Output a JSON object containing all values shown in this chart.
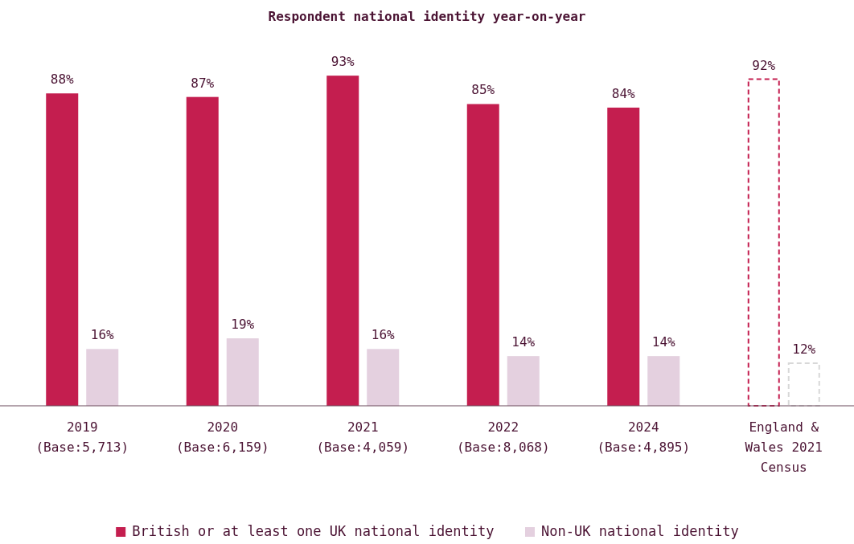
{
  "chart_data": {
    "type": "bar",
    "title": "Respondent national identity year-on-year",
    "categories": [
      "2019\n(Base:5,713)",
      "2020\n(Base:6,159)",
      "2021\n(Base:4,059)",
      "2022\n(Base:8,068)",
      "2024\n(Base:4,895)",
      "England &\nWales 2021\nCensus"
    ],
    "series": [
      {
        "name": "British or at least one UK national identity",
        "color": "#c41e4f",
        "values": [
          88,
          87,
          93,
          85,
          84,
          null
        ],
        "value_labels": [
          "88%",
          "87%",
          "93%",
          "85%",
          "84%",
          null
        ]
      },
      {
        "name": "Non-UK national identity",
        "color": "#e4d0df",
        "values": [
          16,
          19,
          16,
          14,
          14,
          null
        ],
        "value_labels": [
          "16%",
          "19%",
          "16%",
          "14%",
          "14%",
          null
        ]
      },
      {
        "color": "#c41e4f",
        "line_style": "dashed",
        "values": [
          null,
          null,
          null,
          null,
          null,
          92
        ],
        "value_labels": [
          null,
          null,
          null,
          null,
          null,
          "92%"
        ]
      },
      {
        "color": "#d8d8d8",
        "line_style": "dashed",
        "values": [
          null,
          null,
          null,
          null,
          null,
          12
        ],
        "value_labels": [
          null,
          null,
          null,
          null,
          null,
          "12%"
        ]
      }
    ],
    "legend": "bottom"
  }
}
